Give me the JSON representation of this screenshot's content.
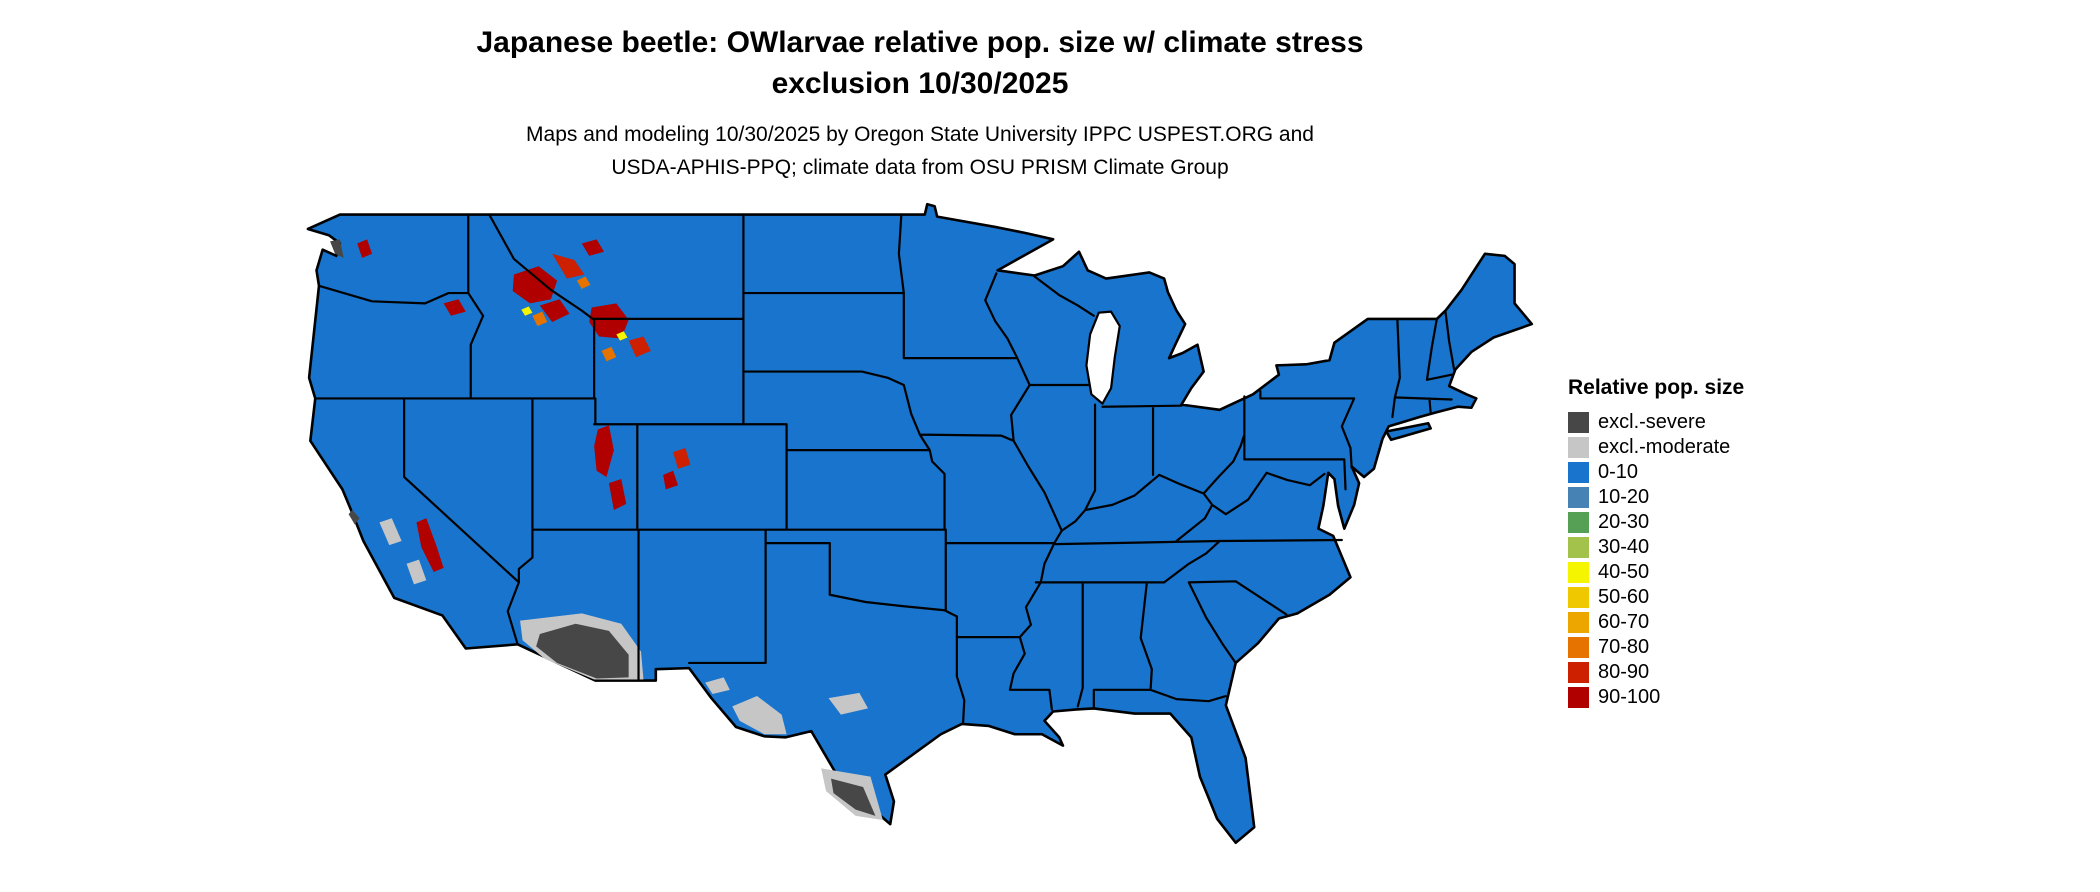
{
  "title": {
    "line1": "Japanese beetle: OWlarvae relative pop. size w/ climate stress",
    "line2": "exclusion 10/30/2025"
  },
  "subtitle": {
    "line1": "Maps and modeling 10/30/2025 by Oregon State University IPPC USPEST.ORG and",
    "line2": "USDA-APHIS-PPQ; climate data from OSU PRISM Climate Group"
  },
  "legend": {
    "title": "Relative pop. size",
    "items": [
      {
        "label": "excl.-severe",
        "color": "#474747"
      },
      {
        "label": "excl.-moderate",
        "color": "#c6c6c6"
      },
      {
        "label": "0-10",
        "color": "#1874cd"
      },
      {
        "label": "10-20",
        "color": "#4682b4"
      },
      {
        "label": "20-30",
        "color": "#55a055"
      },
      {
        "label": "30-40",
        "color": "#a3c24b"
      },
      {
        "label": "40-50",
        "color": "#f5f500"
      },
      {
        "label": "50-60",
        "color": "#f0c800"
      },
      {
        "label": "60-70",
        "color": "#eda500"
      },
      {
        "label": "70-80",
        "color": "#e67300"
      },
      {
        "label": "80-90",
        "color": "#cc2000"
      },
      {
        "label": "90-100",
        "color": "#b00000"
      }
    ]
  },
  "map": {
    "description": "Continental US choropleth; nearly all area in the 0-10 class (blue) with black state borders",
    "water_color": "#ffffff",
    "regions": [
      {
        "area": "most of continental US",
        "category": "0-10"
      },
      {
        "area": "southern Arizona and lower Colorado River desert",
        "category": "excl.-severe"
      },
      {
        "area": "south Texas along the Rio Grande",
        "category": "excl.-severe"
      },
      {
        "area": "Puget Sound lowland, WA",
        "category": "excl.-severe"
      },
      {
        "area": "desert margins in AZ/NM, Big Bend TX, central/coastal CA",
        "category": "excl.-moderate"
      },
      {
        "area": "central Idaho, Yellowstone / NW Wyoming, Utah high plateaus, Colorado Rockies, Sierra Nevada, north Cascades",
        "category": "80-100"
      },
      {
        "area": "scattered specks near the red mountain zones",
        "category": "40-80"
      }
    ]
  }
}
